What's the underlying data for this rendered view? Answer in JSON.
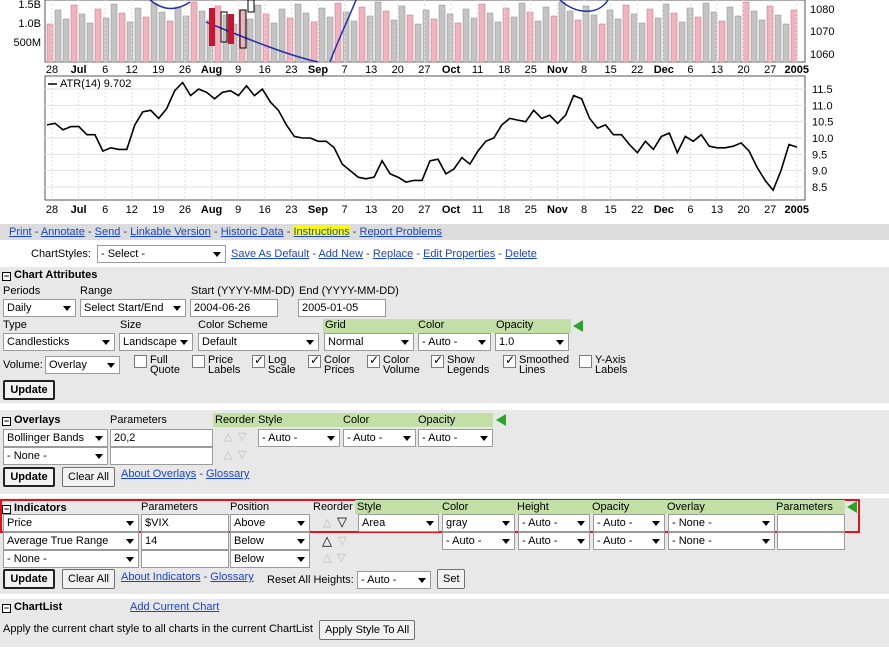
{
  "chart": {
    "volume_labels": [
      "1.5B",
      "1.0B",
      "500M"
    ],
    "price_labels": [
      "1080",
      "1070",
      "1060"
    ],
    "atr_label": "ATR(14) 9.702",
    "atr_ticks": [
      "11.5",
      "11.0",
      "10.5",
      "10.0",
      "9.5",
      "9.0",
      "8.5"
    ],
    "x_labels": [
      {
        "t": "28",
        "b": false
      },
      {
        "t": "Jul",
        "b": true
      },
      {
        "t": "6",
        "b": false
      },
      {
        "t": "12",
        "b": false
      },
      {
        "t": "19",
        "b": false
      },
      {
        "t": "26",
        "b": false
      },
      {
        "t": "Aug",
        "b": true
      },
      {
        "t": "9",
        "b": false
      },
      {
        "t": "16",
        "b": false
      },
      {
        "t": "23",
        "b": false
      },
      {
        "t": "Sep",
        "b": true
      },
      {
        "t": "7",
        "b": false
      },
      {
        "t": "13",
        "b": false
      },
      {
        "t": "20",
        "b": false
      },
      {
        "t": "27",
        "b": false
      },
      {
        "t": "Oct",
        "b": true
      },
      {
        "t": "11",
        "b": false
      },
      {
        "t": "18",
        "b": false
      },
      {
        "t": "25",
        "b": false
      },
      {
        "t": "Nov",
        "b": true
      },
      {
        "t": "8",
        "b": false
      },
      {
        "t": "15",
        "b": false
      },
      {
        "t": "22",
        "b": false
      },
      {
        "t": "Dec",
        "b": true
      },
      {
        "t": "6",
        "b": false
      },
      {
        "t": "13",
        "b": false
      },
      {
        "t": "20",
        "b": false
      },
      {
        "t": "27",
        "b": false
      },
      {
        "t": "2005",
        "b": true
      }
    ],
    "atr_series": [
      10.4,
      10.45,
      10.25,
      10.35,
      10.35,
      10.1,
      10.1,
      9.6,
      9.7,
      9.65,
      9.65,
      10.4,
      10.8,
      10.85,
      10.6,
      10.9,
      11.45,
      11.7,
      11.3,
      11.5,
      11.4,
      11.2,
      11.4,
      11.45,
      11.3,
      11.6,
      11.3,
      11.5,
      11.1,
      10.85,
      10.4,
      10.05,
      10.0,
      10.0,
      9.9,
      9.9,
      9.7,
      9.2,
      9.0,
      8.8,
      8.75,
      8.8,
      9.3,
      8.9,
      8.8,
      8.65,
      8.7,
      8.7,
      9.3,
      9.35,
      8.9,
      9.05,
      9.4,
      9.2,
      9.6,
      9.9,
      10.0,
      10.4,
      10.6,
      10.55,
      10.5,
      10.85,
      10.6,
      10.7,
      10.45,
      10.7,
      11.3,
      11.2,
      10.6,
      10.3,
      10.4,
      10.1,
      10.1,
      9.8,
      9.55,
      9.9,
      9.65,
      10.05,
      10.15,
      9.55,
      10.05,
      9.9,
      10.1,
      9.75,
      9.7,
      9.7,
      9.75,
      9.85,
      9.6,
      9.1,
      8.7,
      8.4,
      9.0,
      9.8,
      9.72
    ]
  },
  "links": {
    "print": "Print",
    "annotate": "Annotate",
    "send": "Send",
    "linkable": "Linkable Version",
    "historic": "Historic Data",
    "instructions": "Instructions",
    "report": "Report Problems",
    "sep": "-"
  },
  "chartstyles": {
    "label": "ChartStyles:",
    "select": "- Select -",
    "save_default": "Save As Default",
    "add_new": "Add New",
    "replace": "Replace",
    "edit_props": "Edit Properties",
    "delete": "Delete"
  },
  "attributes": {
    "title": "Chart Attributes",
    "periods_label": "Periods",
    "periods_value": "Daily",
    "range_label": "Range",
    "range_value": "Select Start/End",
    "start_label": "Start (YYYY-MM-DD)",
    "start_value": "2004-06-26",
    "end_label": "End (YYYY-MM-DD)",
    "end_value": "2005-01-05",
    "type_label": "Type",
    "type_value": "Candlesticks",
    "size_label": "Size",
    "size_value": "Landscape",
    "scheme_label": "Color Scheme",
    "scheme_value": "Default",
    "grid_label": "Grid",
    "grid_value": "Normal",
    "color_label": "Color",
    "color_value": "- Auto -",
    "opacity_label": "Opacity",
    "opacity_value": "1.0",
    "volume_label": "Volume:",
    "volume_value": "Overlay",
    "checks": [
      {
        "l1": "Full",
        "l2": "Quote",
        "on": false
      },
      {
        "l1": "Price",
        "l2": "Labels",
        "on": false
      },
      {
        "l1": "Log",
        "l2": "Scale",
        "on": true
      },
      {
        "l1": "Color",
        "l2": "Prices",
        "on": true
      },
      {
        "l1": "Color",
        "l2": "Volume",
        "on": true
      },
      {
        "l1": "Show",
        "l2": "Legends",
        "on": true
      },
      {
        "l1": "Smoothed",
        "l2": "Lines",
        "on": true
      },
      {
        "l1": "Y-Axis",
        "l2": "Labels",
        "on": false
      }
    ],
    "update": "Update"
  },
  "overlays": {
    "title": "Overlays",
    "params_label": "Parameters",
    "reorder_label": "Reorder",
    "style_label": "Style",
    "color_label": "Color",
    "opacity_label": "Opacity",
    "row1_type": "Bollinger Bands",
    "row1_params": "20,2",
    "row1_style": "- Auto -",
    "row1_color": "- Auto -",
    "row1_opacity": "- Auto -",
    "row2_type": "- None -",
    "row2_params": "",
    "update": "Update",
    "clear_all": "Clear All",
    "about": "About Overlays",
    "glossary": "Glossary"
  },
  "indicators": {
    "title": "Indicators",
    "params_label": "Parameters",
    "position_label": "Position",
    "reorder_label": "Reorder",
    "style_label": "Style",
    "color_label": "Color",
    "height_label": "Height",
    "opacity_label": "Opacity",
    "overlay_label": "Overlay",
    "params2_label": "Parameters",
    "rows": [
      {
        "type": "Price",
        "params": "$VIX",
        "position": "Above",
        "style": "Area",
        "color": "gray",
        "height": "- Auto -",
        "opacity": "- Auto -",
        "overlay": "- None -",
        "params2": ""
      },
      {
        "type": "Average True Range",
        "params": "14",
        "position": "Below",
        "style": "",
        "color": "- Auto -",
        "height": "- Auto -",
        "opacity": "- Auto -",
        "overlay": "- None -",
        "params2": ""
      },
      {
        "type": "- None -",
        "params": "",
        "position": "Below"
      }
    ],
    "update": "Update",
    "clear_all": "Clear All",
    "about": "About Indicators",
    "glossary": "Glossary",
    "reset_heights": "Reset All Heights:",
    "reset_value": "- Auto -",
    "set": "Set"
  },
  "chartlist": {
    "title": "ChartList",
    "add_current": "Add Current Chart",
    "apply_text": "Apply the current chart style to all charts in the current ChartList",
    "apply_button": "Apply Style To All"
  },
  "colors": {
    "link": "#1a44c8",
    "panel": "#e8e8e8",
    "green": "#c2dfa6",
    "red_outline": "#e0141e",
    "highlight": "#ffff00"
  }
}
